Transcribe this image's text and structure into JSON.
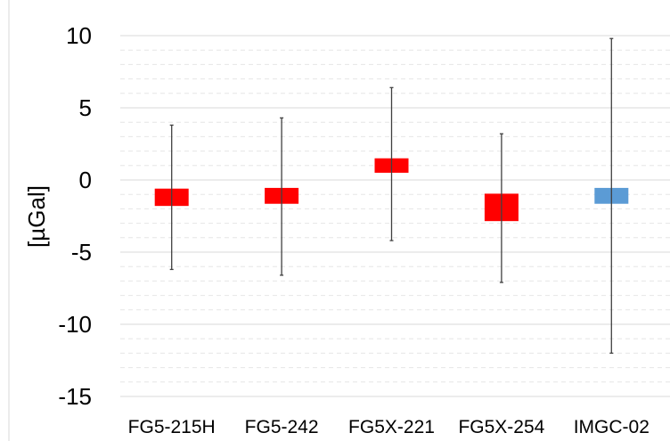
{
  "chart_data": {
    "type": "bar",
    "title": "",
    "xlabel": "",
    "ylabel": "[µGal]",
    "ylim": [
      -15,
      10
    ],
    "yticks": [
      10,
      5,
      0,
      -5,
      -10,
      -15
    ],
    "grid": true,
    "categories": [
      "FG5-215H",
      "FG5-242",
      "FG5X-221",
      "FG5X-254",
      "IMGC-02"
    ],
    "values": [
      -1.2,
      -1.1,
      1.0,
      -1.9,
      -1.1
    ],
    "bar_half_height": [
      0.6,
      0.55,
      0.5,
      0.95,
      0.55
    ],
    "error_upper": [
      3.8,
      4.3,
      6.4,
      3.2,
      9.8
    ],
    "error_lower": [
      -6.2,
      -6.6,
      -4.2,
      -7.1,
      -12.0
    ],
    "colors": [
      "#ff0000",
      "#ff0000",
      "#ff0000",
      "#ff0000",
      "#5b9bd5"
    ]
  }
}
